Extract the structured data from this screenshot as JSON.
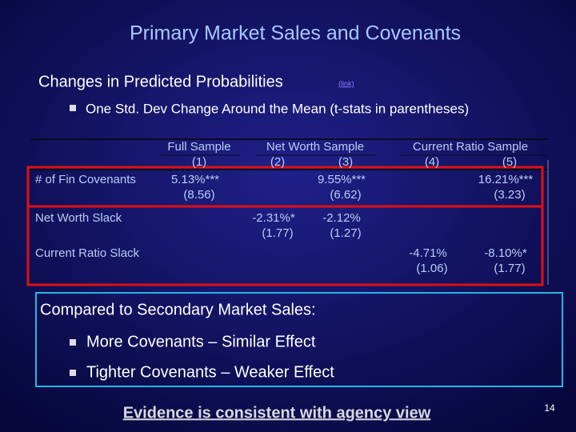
{
  "title": "Primary Market Sales and Covenants",
  "heading": {
    "text": "Changes in Predicted Probabilities",
    "link": "(link)"
  },
  "subheading": "One Std. Dev Change Around the Mean (t-stats in parentheses)",
  "table": {
    "groups": [
      "Full Sample",
      "Net Worth Sample",
      "Current Ratio Sample"
    ],
    "columns": [
      "(1)",
      "(2)",
      "(3)",
      "(4)",
      "(5)"
    ],
    "rows": [
      {
        "label": "# of Fin Covenants",
        "cells": [
          [
            "5.13%***",
            "(8.56)"
          ],
          null,
          [
            "9.55%***",
            "(6.62)"
          ],
          null,
          [
            "16.21%***",
            "(3.23)"
          ]
        ]
      },
      {
        "label": "Net Worth Slack",
        "cells": [
          null,
          [
            "-2.31%*",
            "(1.77)"
          ],
          [
            "-2.12%",
            "(1.27)"
          ],
          null,
          null
        ]
      },
      {
        "label": "Current Ratio Slack",
        "cells": [
          null,
          null,
          null,
          [
            "-4.71%",
            "(1.06)"
          ],
          [
            "-8.10%*",
            "(1.77)"
          ]
        ]
      }
    ]
  },
  "box": {
    "title": "Compared to Secondary Market Sales:",
    "bullets": [
      "More Covenants – Similar Effect",
      "Tighter Covenants – Weaker Effect"
    ]
  },
  "footer": {
    "text": "Evidence is consistent with agency view",
    "page": "14"
  }
}
